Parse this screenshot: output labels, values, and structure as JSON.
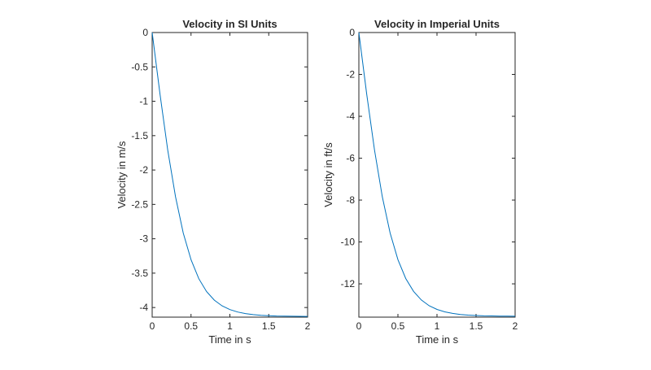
{
  "chart_data": [
    {
      "type": "line",
      "title": "Velocity in SI Units",
      "xlabel": "Time in s",
      "ylabel": "Velocity in m/s",
      "xlim": [
        0,
        2
      ],
      "ylim": [
        -4.14,
        0
      ],
      "xticks": [
        "0",
        "0.5",
        "1",
        "1.5",
        "2"
      ],
      "xtick_values": [
        0,
        0.5,
        1,
        1.5,
        2
      ],
      "yticks": [
        "0",
        "-0.5",
        "-1",
        "-1.5",
        "-2",
        "-2.5",
        "-3",
        "-3.5",
        "-4"
      ],
      "ytick_values": [
        0,
        -0.5,
        -1,
        -1.5,
        -2,
        -2.5,
        -3,
        -3.5,
        -4
      ],
      "grid": false,
      "line_color": "#0072BD",
      "x": [
        0,
        0.1,
        0.2,
        0.3,
        0.4,
        0.5,
        0.6,
        0.7,
        0.8,
        0.9,
        1.0,
        1.1,
        1.2,
        1.3,
        1.4,
        1.5,
        1.6,
        1.7,
        1.8,
        1.9,
        2.0
      ],
      "y": [
        0,
        -0.894,
        -1.708,
        -2.389,
        -2.917,
        -3.306,
        -3.58,
        -3.767,
        -3.893,
        -3.976,
        -4.03,
        -4.065,
        -4.088,
        -4.103,
        -4.113,
        -4.119,
        -4.123,
        -4.125,
        -4.127,
        -4.128,
        -4.129
      ]
    },
    {
      "type": "line",
      "title": "Velocity in Imperial Units",
      "xlabel": "Time in s",
      "ylabel": "Velocity in ft/s",
      "xlim": [
        0,
        2
      ],
      "ylim": [
        -13.59,
        0
      ],
      "xticks": [
        "0",
        "0.5",
        "1",
        "1.5",
        "2"
      ],
      "xtick_values": [
        0,
        0.5,
        1,
        1.5,
        2
      ],
      "yticks": [
        "0",
        "-2",
        "-4",
        "-6",
        "-8",
        "-10",
        "-12"
      ],
      "ytick_values": [
        0,
        -2,
        -4,
        -6,
        -8,
        -10,
        -12
      ],
      "grid": false,
      "line_color": "#0072BD",
      "x": [
        0,
        0.1,
        0.2,
        0.3,
        0.4,
        0.5,
        0.6,
        0.7,
        0.8,
        0.9,
        1.0,
        1.1,
        1.2,
        1.3,
        1.4,
        1.5,
        1.6,
        1.7,
        1.8,
        1.9,
        2.0
      ],
      "y": [
        0,
        -2.933,
        -5.604,
        -7.838,
        -9.57,
        -10.846,
        -11.745,
        -12.359,
        -12.772,
        -13.045,
        -13.222,
        -13.336,
        -13.412,
        -13.461,
        -13.494,
        -13.513,
        -13.527,
        -13.533,
        -13.54,
        -13.543,
        -13.546
      ]
    }
  ]
}
